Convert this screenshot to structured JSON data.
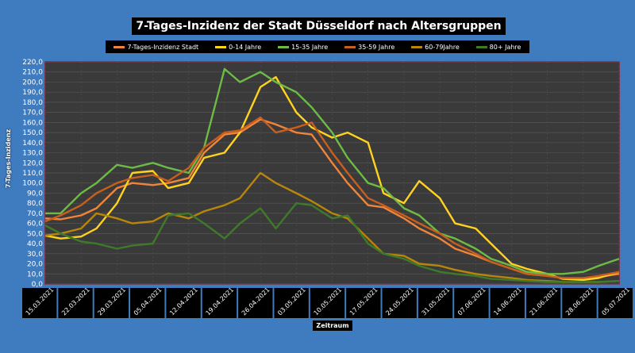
{
  "colors": {
    "page_bg": "#3f7bbf",
    "plot_bg": "#3a3a3a",
    "plot_border": "#8b1a2b",
    "grid": "#555555"
  },
  "chart_data": {
    "type": "line",
    "title": "7-Tages-Inzidenz der Stadt Düsseldorf nach Altersgruppen",
    "xlabel": "Zeitraum",
    "ylabel": "7-Tages-Inzidenz",
    "ylim": [
      0,
      220
    ],
    "y_ticks": [
      "0,0",
      "10,0",
      "20,0",
      "30,0",
      "40,0",
      "50,0",
      "60,0",
      "70,0",
      "80,0",
      "90,0",
      "100,0",
      "110,0",
      "120,0",
      "130,0",
      "140,0",
      "150,0",
      "160,0",
      "170,0",
      "180,0",
      "190,0",
      "200,0",
      "210,0",
      "220,0"
    ],
    "x_start": "15.03.2021",
    "x_end": "05.07.2021",
    "x_ticks": [
      "15.03.2021",
      "22.03.2021",
      "29.03.2021",
      "05.04.2021",
      "12.04.2021",
      "19.04.2021",
      "26.04.2021",
      "03.05.2021",
      "10.05.2021",
      "17.05.2021",
      "24.05.2021",
      "31.05.2021",
      "07.06.2021",
      "14.06.2021",
      "21.06.2021",
      "28.06.2021",
      "05.07.2021"
    ],
    "grid": true,
    "legend_position": "top",
    "series": [
      {
        "name": "7-Tages-Inzidenz Stadt",
        "color": "#f0853a",
        "points": [
          [
            "15.03.2021",
            65
          ],
          [
            "18.03.2021",
            64
          ],
          [
            "22.03.2021",
            68
          ],
          [
            "25.03.2021",
            75
          ],
          [
            "29.03.2021",
            95
          ],
          [
            "01.04.2021",
            100
          ],
          [
            "05.04.2021",
            98
          ],
          [
            "08.04.2021",
            100
          ],
          [
            "12.04.2021",
            105
          ],
          [
            "15.04.2021",
            130
          ],
          [
            "19.04.2021",
            148
          ],
          [
            "22.04.2021",
            150
          ],
          [
            "26.04.2021",
            163
          ],
          [
            "29.04.2021",
            158
          ],
          [
            "03.05.2021",
            150
          ],
          [
            "06.05.2021",
            148
          ],
          [
            "10.05.2021",
            120
          ],
          [
            "13.05.2021",
            100
          ],
          [
            "17.05.2021",
            78
          ],
          [
            "20.05.2021",
            76
          ],
          [
            "24.05.2021",
            65
          ],
          [
            "27.05.2021",
            55
          ],
          [
            "31.05.2021",
            45
          ],
          [
            "03.06.2021",
            35
          ],
          [
            "07.06.2021",
            28
          ],
          [
            "10.06.2021",
            22
          ],
          [
            "14.06.2021",
            15
          ],
          [
            "17.06.2021",
            10
          ],
          [
            "21.06.2021",
            8
          ],
          [
            "24.06.2021",
            6
          ],
          [
            "28.06.2021",
            5
          ],
          [
            "01.07.2021",
            7
          ],
          [
            "05.07.2021",
            10
          ]
        ]
      },
      {
        "name": "0-14 Jahre",
        "color": "#ffd21f",
        "points": [
          [
            "15.03.2021",
            48
          ],
          [
            "18.03.2021",
            45
          ],
          [
            "22.03.2021",
            47
          ],
          [
            "25.03.2021",
            55
          ],
          [
            "29.03.2021",
            80
          ],
          [
            "01.04.2021",
            110
          ],
          [
            "05.04.2021",
            112
          ],
          [
            "08.04.2021",
            95
          ],
          [
            "12.04.2021",
            100
          ],
          [
            "15.04.2021",
            125
          ],
          [
            "19.04.2021",
            130
          ],
          [
            "22.04.2021",
            150
          ],
          [
            "26.04.2021",
            195
          ],
          [
            "29.04.2021",
            205
          ],
          [
            "03.05.2021",
            170
          ],
          [
            "06.05.2021",
            155
          ],
          [
            "10.05.2021",
            145
          ],
          [
            "13.05.2021",
            150
          ],
          [
            "17.05.2021",
            140
          ],
          [
            "20.05.2021",
            90
          ],
          [
            "24.05.2021",
            80
          ],
          [
            "27.05.2021",
            102
          ],
          [
            "31.05.2021",
            85
          ],
          [
            "03.06.2021",
            60
          ],
          [
            "07.06.2021",
            55
          ],
          [
            "10.06.2021",
            40
          ],
          [
            "14.06.2021",
            20
          ],
          [
            "17.06.2021",
            15
          ],
          [
            "21.06.2021",
            10
          ],
          [
            "24.06.2021",
            5
          ],
          [
            "28.06.2021",
            4
          ],
          [
            "01.07.2021",
            6
          ],
          [
            "05.07.2021",
            12
          ]
        ]
      },
      {
        "name": "15-35 Jahre",
        "color": "#6dbb45",
        "points": [
          [
            "15.03.2021",
            70
          ],
          [
            "18.03.2021",
            70
          ],
          [
            "22.03.2021",
            90
          ],
          [
            "25.03.2021",
            100
          ],
          [
            "29.03.2021",
            118
          ],
          [
            "01.04.2021",
            115
          ],
          [
            "05.04.2021",
            120
          ],
          [
            "08.04.2021",
            115
          ],
          [
            "12.04.2021",
            110
          ],
          [
            "15.04.2021",
            135
          ],
          [
            "19.04.2021",
            213
          ],
          [
            "22.04.2021",
            200
          ],
          [
            "26.04.2021",
            210
          ],
          [
            "29.04.2021",
            200
          ],
          [
            "03.05.2021",
            190
          ],
          [
            "06.05.2021",
            175
          ],
          [
            "10.05.2021",
            150
          ],
          [
            "13.05.2021",
            125
          ],
          [
            "17.05.2021",
            100
          ],
          [
            "20.05.2021",
            95
          ],
          [
            "24.05.2021",
            75
          ],
          [
            "27.05.2021",
            68
          ],
          [
            "31.05.2021",
            50
          ],
          [
            "03.06.2021",
            45
          ],
          [
            "07.06.2021",
            35
          ],
          [
            "10.06.2021",
            25
          ],
          [
            "14.06.2021",
            18
          ],
          [
            "17.06.2021",
            12
          ],
          [
            "21.06.2021",
            10
          ],
          [
            "24.06.2021",
            10
          ],
          [
            "28.06.2021",
            12
          ],
          [
            "01.07.2021",
            18
          ],
          [
            "05.07.2021",
            25
          ]
        ]
      },
      {
        "name": "35-59 Jahre",
        "color": "#c85f1e",
        "points": [
          [
            "15.03.2021",
            62
          ],
          [
            "18.03.2021",
            68
          ],
          [
            "22.03.2021",
            78
          ],
          [
            "25.03.2021",
            90
          ],
          [
            "29.03.2021",
            100
          ],
          [
            "01.04.2021",
            105
          ],
          [
            "05.04.2021",
            108
          ],
          [
            "08.04.2021",
            102
          ],
          [
            "12.04.2021",
            115
          ],
          [
            "15.04.2021",
            135
          ],
          [
            "19.04.2021",
            150
          ],
          [
            "22.04.2021",
            152
          ],
          [
            "26.04.2021",
            165
          ],
          [
            "29.04.2021",
            150
          ],
          [
            "03.05.2021",
            155
          ],
          [
            "06.05.2021",
            160
          ],
          [
            "10.05.2021",
            130
          ],
          [
            "13.05.2021",
            110
          ],
          [
            "17.05.2021",
            85
          ],
          [
            "20.05.2021",
            78
          ],
          [
            "24.05.2021",
            68
          ],
          [
            "27.05.2021",
            60
          ],
          [
            "31.05.2021",
            50
          ],
          [
            "03.06.2021",
            40
          ],
          [
            "07.06.2021",
            30
          ],
          [
            "10.06.2021",
            22
          ],
          [
            "14.06.2021",
            15
          ],
          [
            "17.06.2021",
            10
          ],
          [
            "21.06.2021",
            8
          ],
          [
            "24.06.2021",
            6
          ],
          [
            "28.06.2021",
            6
          ],
          [
            "01.07.2021",
            8
          ],
          [
            "05.07.2021",
            12
          ]
        ]
      },
      {
        "name": "60-79Jahre",
        "color": "#b8860b",
        "points": [
          [
            "15.03.2021",
            48
          ],
          [
            "18.03.2021",
            50
          ],
          [
            "22.03.2021",
            55
          ],
          [
            "25.03.2021",
            70
          ],
          [
            "29.03.2021",
            65
          ],
          [
            "01.04.2021",
            60
          ],
          [
            "05.04.2021",
            62
          ],
          [
            "08.04.2021",
            70
          ],
          [
            "12.04.2021",
            65
          ],
          [
            "15.04.2021",
            72
          ],
          [
            "19.04.2021",
            78
          ],
          [
            "22.04.2021",
            85
          ],
          [
            "26.04.2021",
            110
          ],
          [
            "29.04.2021",
            100
          ],
          [
            "03.05.2021",
            90
          ],
          [
            "06.05.2021",
            82
          ],
          [
            "10.05.2021",
            70
          ],
          [
            "13.05.2021",
            65
          ],
          [
            "17.05.2021",
            45
          ],
          [
            "20.05.2021",
            30
          ],
          [
            "24.05.2021",
            28
          ],
          [
            "27.05.2021",
            20
          ],
          [
            "31.05.2021",
            18
          ],
          [
            "03.06.2021",
            14
          ],
          [
            "07.06.2021",
            10
          ],
          [
            "10.06.2021",
            8
          ],
          [
            "14.06.2021",
            6
          ],
          [
            "17.06.2021",
            4
          ],
          [
            "21.06.2021",
            3
          ],
          [
            "24.06.2021",
            2
          ],
          [
            "28.06.2021",
            2
          ],
          [
            "01.07.2021",
            2
          ],
          [
            "05.07.2021",
            3
          ]
        ]
      },
      {
        "name": "80+ Jahre",
        "color": "#3f7a2a",
        "points": [
          [
            "15.03.2021",
            58
          ],
          [
            "18.03.2021",
            50
          ],
          [
            "22.03.2021",
            42
          ],
          [
            "25.03.2021",
            40
          ],
          [
            "29.03.2021",
            35
          ],
          [
            "01.04.2021",
            38
          ],
          [
            "05.04.2021",
            40
          ],
          [
            "08.04.2021",
            68
          ],
          [
            "12.04.2021",
            70
          ],
          [
            "15.04.2021",
            60
          ],
          [
            "19.04.2021",
            45
          ],
          [
            "22.04.2021",
            60
          ],
          [
            "26.04.2021",
            75
          ],
          [
            "29.04.2021",
            55
          ],
          [
            "03.05.2021",
            80
          ],
          [
            "06.05.2021",
            78
          ],
          [
            "10.05.2021",
            65
          ],
          [
            "13.05.2021",
            68
          ],
          [
            "17.05.2021",
            40
          ],
          [
            "20.05.2021",
            30
          ],
          [
            "24.05.2021",
            25
          ],
          [
            "27.05.2021",
            18
          ],
          [
            "31.05.2021",
            12
          ],
          [
            "03.06.2021",
            10
          ],
          [
            "07.06.2021",
            8
          ],
          [
            "10.06.2021",
            5
          ],
          [
            "14.06.2021",
            4
          ],
          [
            "17.06.2021",
            3
          ],
          [
            "21.06.2021",
            2
          ],
          [
            "24.06.2021",
            2
          ],
          [
            "28.06.2021",
            2
          ],
          [
            "01.07.2021",
            2
          ],
          [
            "05.07.2021",
            3
          ]
        ]
      }
    ]
  }
}
